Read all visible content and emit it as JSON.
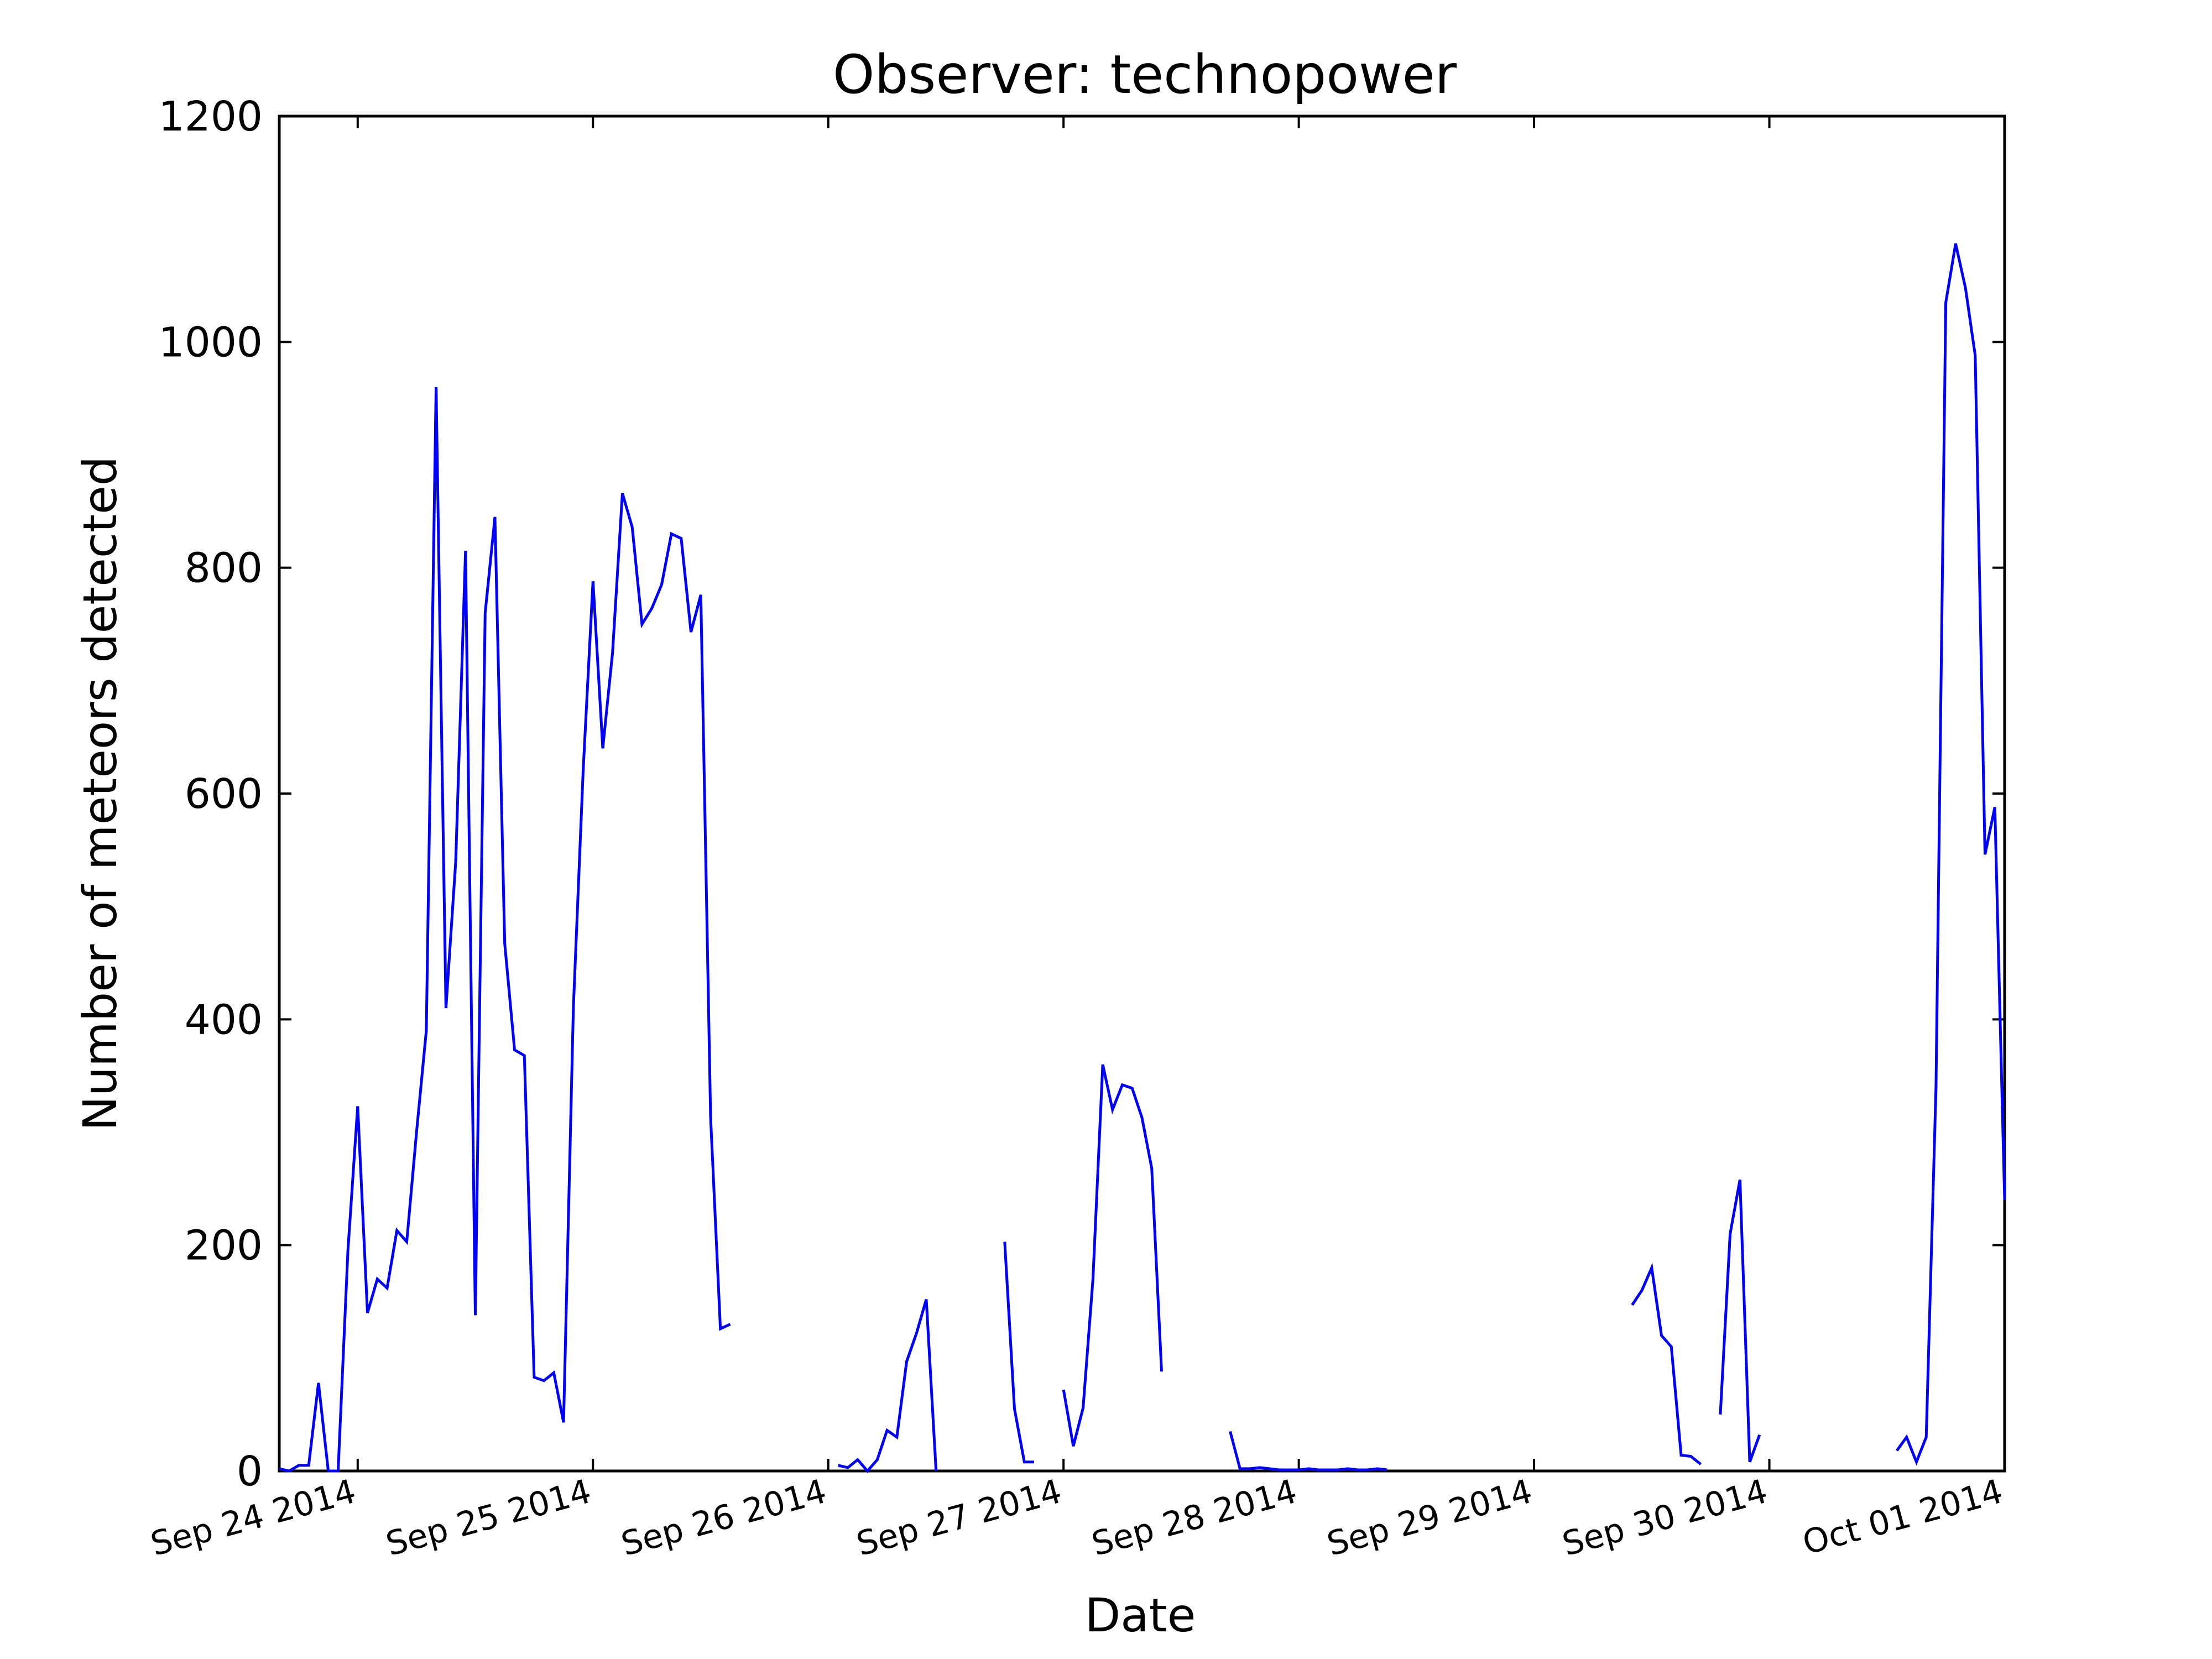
{
  "chart_data": {
    "type": "line",
    "title": "Observer: technopower",
    "xlabel": "Date",
    "ylabel": "Number of meteors detected",
    "ylim": [
      0,
      1200
    ],
    "yticks": [
      0,
      200,
      400,
      600,
      800,
      1000,
      1200
    ],
    "xlim": [
      "2014-09-23 16:00",
      "2014-10-01 00:00"
    ],
    "xticks": [
      {
        "date": "2014-09-24",
        "label": "Sep 24 2014"
      },
      {
        "date": "2014-09-25",
        "label": "Sep 25 2014"
      },
      {
        "date": "2014-09-26",
        "label": "Sep 26 2014"
      },
      {
        "date": "2014-09-27",
        "label": "Sep 27 2014"
      },
      {
        "date": "2014-09-28",
        "label": "Sep 28 2014"
      },
      {
        "date": "2014-09-29",
        "label": "Sep 29 2014"
      },
      {
        "date": "2014-09-30",
        "label": "Sep 30 2014"
      },
      {
        "date": "2014-10-01",
        "label": "Oct 01 2014"
      }
    ],
    "grid": false,
    "line_color": "#0000ff",
    "series": [
      {
        "segments": [
          [
            [
              "2014-09-23 16:00",
              2
            ],
            [
              "2014-09-23 17:00",
              0
            ],
            [
              "2014-09-23 18:00",
              5
            ],
            [
              "2014-09-23 19:00",
              5
            ],
            [
              "2014-09-23 20:00",
              78
            ],
            [
              "2014-09-23 21:00",
              0
            ],
            [
              "2014-09-23 22:00",
              0
            ],
            [
              "2014-09-23 23:00",
              195
            ],
            [
              "2014-09-24 00:00",
              323
            ],
            [
              "2014-09-24 01:00",
              140
            ],
            [
              "2014-09-24 02:00",
              170
            ],
            [
              "2014-09-24 03:00",
              162
            ],
            [
              "2014-09-24 04:00",
              213
            ],
            [
              "2014-09-24 05:00",
              203
            ],
            [
              "2014-09-24 06:00",
              300
            ],
            [
              "2014-09-24 07:00",
              390
            ],
            [
              "2014-09-24 08:00",
              960
            ],
            [
              "2014-09-24 09:00",
              410
            ],
            [
              "2014-09-24 10:00",
              540
            ],
            [
              "2014-09-24 11:00",
              815
            ],
            [
              "2014-09-24 12:00",
              138
            ],
            [
              "2014-09-24 13:00",
              760
            ],
            [
              "2014-09-24 14:00",
              845
            ],
            [
              "2014-09-24 15:00",
              467
            ],
            [
              "2014-09-24 16:00",
              373
            ],
            [
              "2014-09-24 17:00",
              368
            ],
            [
              "2014-09-24 18:00",
              83
            ],
            [
              "2014-09-24 19:00",
              80
            ],
            [
              "2014-09-24 20:00",
              87
            ],
            [
              "2014-09-24 21:00",
              43
            ],
            [
              "2014-09-24 22:00",
              410
            ],
            [
              "2014-09-24 23:00",
              620
            ],
            [
              "2014-09-25 00:00",
              788
            ],
            [
              "2014-09-25 01:00",
              640
            ],
            [
              "2014-09-25 02:00",
              725
            ],
            [
              "2014-09-25 03:00",
              866
            ],
            [
              "2014-09-25 04:00",
              836
            ],
            [
              "2014-09-25 05:00",
              750
            ],
            [
              "2014-09-25 06:00",
              764
            ],
            [
              "2014-09-25 07:00",
              785
            ],
            [
              "2014-09-25 08:00",
              830
            ],
            [
              "2014-09-25 09:00",
              826
            ],
            [
              "2014-09-25 10:00",
              743
            ],
            [
              "2014-09-25 11:00",
              776
            ],
            [
              "2014-09-25 12:00",
              313
            ],
            [
              "2014-09-25 13:00",
              126
            ],
            [
              "2014-09-25 14:00",
              130
            ]
          ],
          [
            [
              "2014-09-26 01:00",
              5
            ],
            [
              "2014-09-26 02:00",
              3
            ],
            [
              "2014-09-26 03:00",
              10
            ],
            [
              "2014-09-26 04:00",
              0
            ],
            [
              "2014-09-26 05:00",
              10
            ],
            [
              "2014-09-26 06:00",
              36
            ],
            [
              "2014-09-26 07:00",
              30
            ],
            [
              "2014-09-26 08:00",
              97
            ],
            [
              "2014-09-26 09:00",
              122
            ],
            [
              "2014-09-26 10:00",
              152
            ],
            [
              "2014-09-26 11:00",
              0
            ]
          ],
          [
            [
              "2014-09-26 18:00",
              203
            ],
            [
              "2014-09-26 19:00",
              55
            ],
            [
              "2014-09-26 20:00",
              8
            ],
            [
              "2014-09-26 21:00",
              8
            ]
          ],
          [
            [
              "2014-09-27 00:00",
              72
            ],
            [
              "2014-09-27 01:00",
              22
            ],
            [
              "2014-09-27 02:00",
              56
            ],
            [
              "2014-09-27 03:00",
              170
            ],
            [
              "2014-09-27 04:00",
              360
            ],
            [
              "2014-09-27 05:00",
              320
            ],
            [
              "2014-09-27 06:00",
              342
            ],
            [
              "2014-09-27 07:00",
              339
            ],
            [
              "2014-09-27 08:00",
              313
            ],
            [
              "2014-09-27 09:00",
              268
            ],
            [
              "2014-09-27 10:00",
              88
            ]
          ],
          [
            [
              "2014-09-27 17:00",
              35
            ],
            [
              "2014-09-27 18:00",
              2
            ],
            [
              "2014-09-27 19:00",
              2
            ],
            [
              "2014-09-27 20:00",
              3
            ],
            [
              "2014-09-27 21:00",
              2
            ],
            [
              "2014-09-27 22:00",
              1
            ],
            [
              "2014-09-27 23:00",
              1
            ],
            [
              "2014-09-28 00:00",
              1
            ],
            [
              "2014-09-28 01:00",
              2
            ],
            [
              "2014-09-28 02:00",
              1
            ],
            [
              "2014-09-28 03:00",
              1
            ],
            [
              "2014-09-28 04:00",
              1
            ],
            [
              "2014-09-28 05:00",
              2
            ],
            [
              "2014-09-28 06:00",
              1
            ],
            [
              "2014-09-28 07:00",
              1
            ],
            [
              "2014-09-28 08:00",
              2
            ],
            [
              "2014-09-28 09:00",
              1
            ]
          ],
          [
            [
              "2014-09-29 10:00",
              147
            ],
            [
              "2014-09-29 11:00",
              160
            ],
            [
              "2014-09-29 12:00",
              180
            ],
            [
              "2014-09-29 13:00",
              120
            ],
            [
              "2014-09-29 14:00",
              110
            ],
            [
              "2014-09-29 15:00",
              14
            ],
            [
              "2014-09-29 16:00",
              13
            ],
            [
              "2014-09-29 17:00",
              6
            ]
          ],
          [
            [
              "2014-09-29 19:00",
              50
            ],
            [
              "2014-09-29 20:00",
              210
            ],
            [
              "2014-09-29 21:00",
              258
            ],
            [
              "2014-09-29 22:00",
              8
            ],
            [
              "2014-09-29 23:00",
              32
            ]
          ],
          [
            [
              "2014-09-30 13:00",
              18
            ],
            [
              "2014-09-30 14:00",
              30
            ],
            [
              "2014-09-30 15:00",
              8
            ],
            [
              "2014-09-30 16:00",
              30
            ],
            [
              "2014-09-30 17:00",
              340
            ],
            [
              "2014-09-30 18:00",
              1035
            ],
            [
              "2014-09-30 19:00",
              1087
            ],
            [
              "2014-09-30 20:00",
              1048
            ],
            [
              "2014-09-30 21:00",
              988
            ],
            [
              "2014-09-30 22:00",
              546
            ],
            [
              "2014-09-30 23:00",
              588
            ],
            [
              "2014-10-01 00:00",
              240
            ]
          ]
        ]
      }
    ]
  }
}
